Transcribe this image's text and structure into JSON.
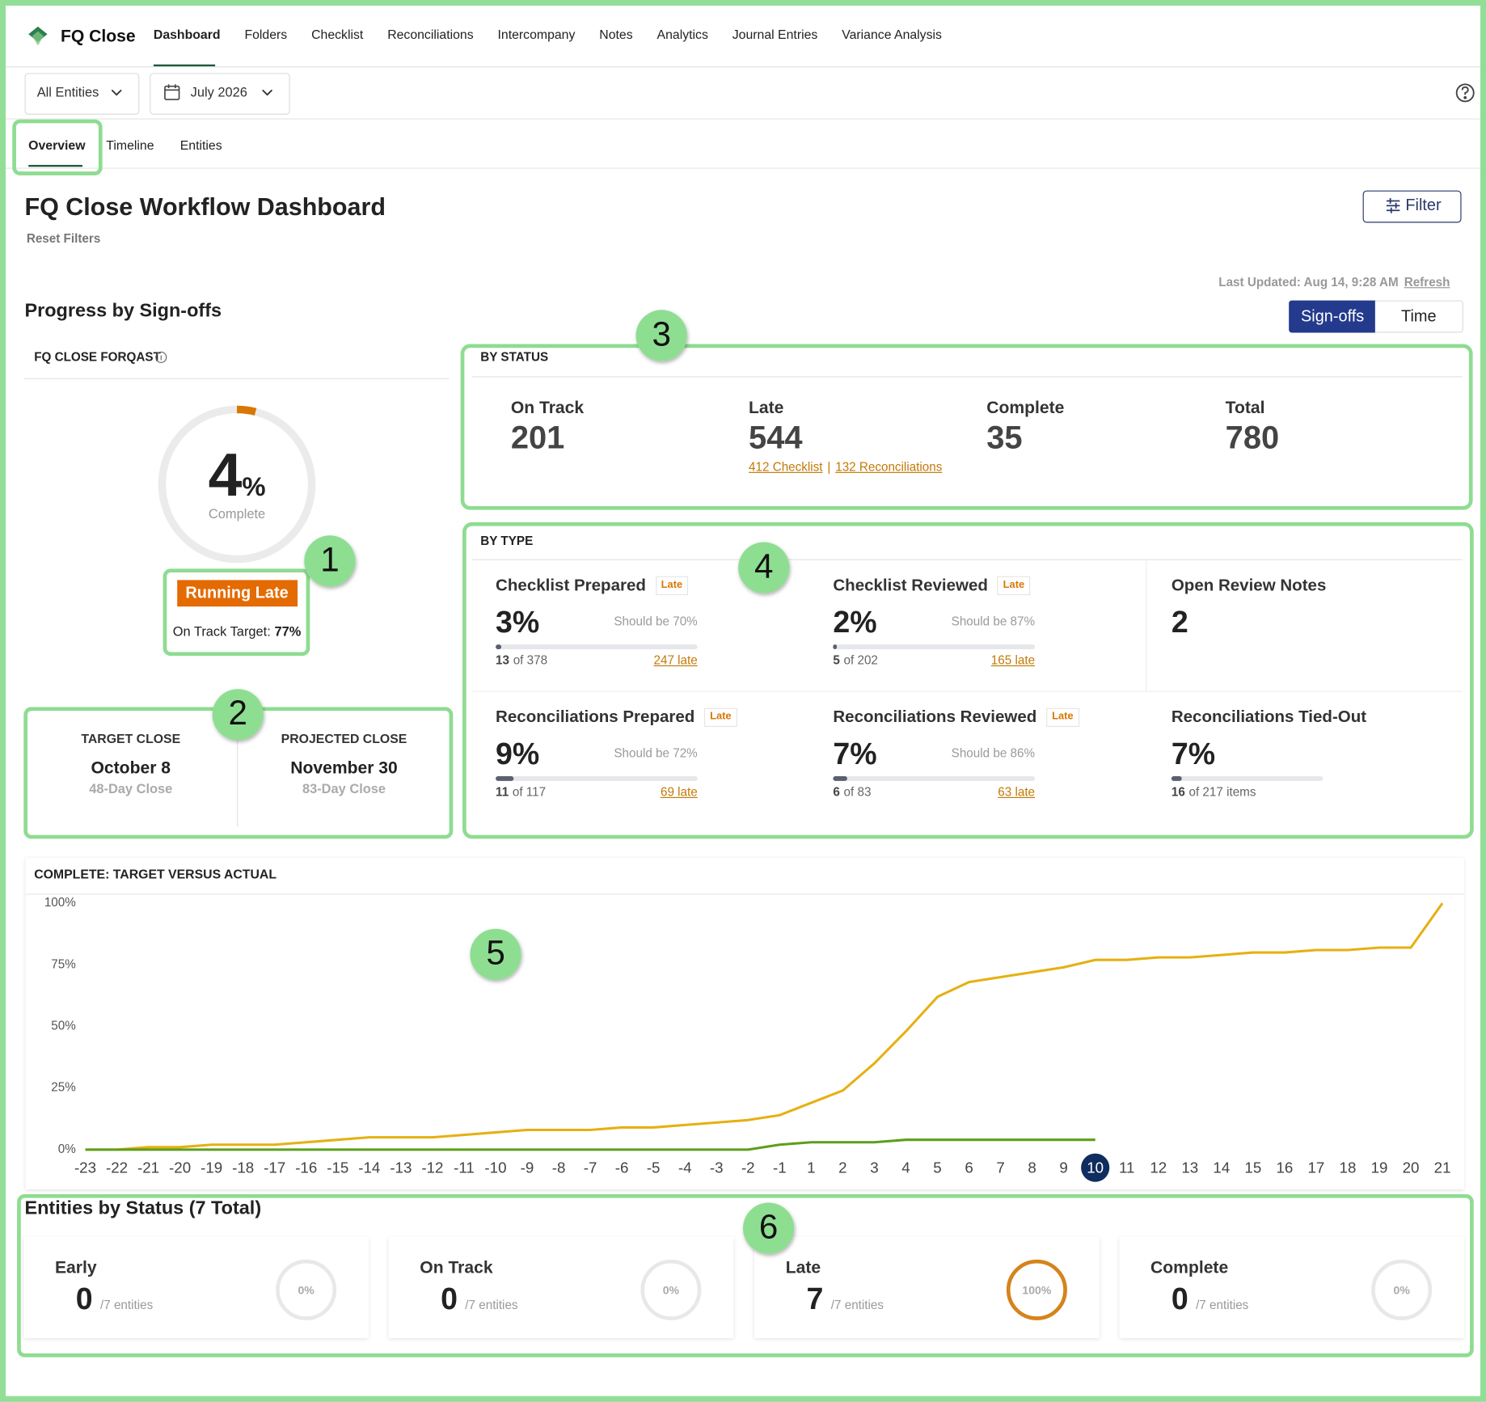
{
  "nav": {
    "brand": "FQ Close",
    "items": [
      "Dashboard",
      "Folders",
      "Checklist",
      "Reconciliations",
      "Intercompany",
      "Notes",
      "Analytics",
      "Journal Entries",
      "Variance Analysis"
    ]
  },
  "filters": {
    "entities": "All Entities",
    "period": "July 2026"
  },
  "tabs": [
    "Overview",
    "Timeline",
    "Entities"
  ],
  "header": {
    "title": "FQ Close Workflow Dashboard",
    "reset": "Reset Filters",
    "filter_button": "Filter",
    "last_updated": "Last Updated: Aug 14, 9:28 AM",
    "refresh": "Refresh"
  },
  "progress": {
    "title": "Progress by Sign-offs",
    "toggle": [
      "Sign-offs",
      "Time"
    ]
  },
  "forqast": {
    "title": "FQ CLOSE FORQAST",
    "value": 4,
    "unit": "%",
    "caption": "Complete",
    "badge": "Running Late",
    "target_label": "On Track Target:",
    "target_value": "77%"
  },
  "close_dates": [
    {
      "label": "TARGET CLOSE",
      "date": "October 8",
      "note": "48-Day Close"
    },
    {
      "label": "PROJECTED CLOSE",
      "date": "November 30",
      "note": "83-Day Close"
    }
  ],
  "by_status": {
    "title": "BY STATUS",
    "items": [
      {
        "label": "On Track",
        "value": 201
      },
      {
        "label": "Late",
        "value": 544
      },
      {
        "label": "Complete",
        "value": 35
      },
      {
        "label": "Total",
        "value": 780
      }
    ],
    "late_links": [
      "412 Checklist",
      "132 Reconciliations"
    ],
    "separator": "|"
  },
  "by_type": {
    "title": "BY TYPE",
    "items": [
      {
        "title": "Checklist Prepared",
        "badge": "Late",
        "percent": 3,
        "percent_label": "3%",
        "should": "Should be 70%",
        "done": "13",
        "of": "of 378",
        "late": "247 late"
      },
      {
        "title": "Checklist Reviewed",
        "badge": "Late",
        "percent": 2,
        "percent_label": "2%",
        "should": "Should be 87%",
        "done": "5",
        "of": "of 202",
        "late": "165 late"
      },
      {
        "title": "Open Review Notes",
        "value": "2"
      },
      {
        "title": "Reconciliations Prepared",
        "badge": "Late",
        "percent": 9,
        "percent_label": "9%",
        "should": "Should be 72%",
        "done": "11",
        "of": "of 117",
        "late": "69 late"
      },
      {
        "title": "Reconciliations Reviewed",
        "badge": "Late",
        "percent": 7,
        "percent_label": "7%",
        "should": "Should be 86%",
        "done": "6",
        "of": "of 83",
        "late": "63 late"
      },
      {
        "title": "Reconciliations Tied-Out",
        "percent": 7,
        "percent_label": "7%",
        "done": "16",
        "of": "of 217 items"
      }
    ]
  },
  "chart_data": {
    "type": "line",
    "title": "COMPLETE: TARGET VERSUS ACTUAL",
    "categories": [
      -23,
      -22,
      -21,
      -20,
      -19,
      -18,
      -17,
      -16,
      -15,
      -14,
      -13,
      -12,
      -11,
      -10,
      -9,
      -8,
      -7,
      -6,
      -5,
      -4,
      -3,
      -2,
      -1,
      1,
      2,
      3,
      4,
      5,
      6,
      7,
      8,
      9,
      10,
      11,
      12,
      13,
      14,
      15,
      16,
      17,
      18,
      19,
      20,
      21
    ],
    "current": 10,
    "series": [
      {
        "color": "#e6b012",
        "values": [
          0,
          0,
          1,
          1,
          2,
          2,
          2,
          3,
          4,
          5,
          5,
          5,
          6,
          7,
          8,
          8,
          8,
          9,
          9,
          10,
          11,
          12,
          14,
          19,
          24,
          35,
          48,
          62,
          68,
          70,
          72,
          74,
          77,
          77,
          78,
          78,
          79,
          80,
          80,
          81,
          81,
          82,
          82,
          100
        ]
      },
      {
        "color": "#5c9e1c",
        "values": [
          0,
          0,
          0,
          0,
          0,
          0,
          0,
          0,
          0,
          0,
          0,
          0,
          0,
          0,
          0,
          0,
          0,
          0,
          0,
          0,
          0,
          0,
          2,
          3,
          3,
          3,
          4,
          4,
          4,
          4,
          4,
          4,
          4,
          null,
          null,
          null,
          null,
          null,
          null,
          null,
          null,
          null,
          null,
          null
        ]
      }
    ],
    "ylim": [
      0,
      100
    ],
    "yticks": [
      {
        "value": 0,
        "label": "0%"
      },
      {
        "value": 25,
        "label": "25%"
      },
      {
        "value": 50,
        "label": "50%"
      },
      {
        "value": 75,
        "label": "75%"
      },
      {
        "value": 100,
        "label": "100%"
      }
    ],
    "grid": false
  },
  "entities": {
    "title": "Entities by Status (7 Total)",
    "cards": [
      {
        "label": "Early",
        "count": 0,
        "of": "/7 entities",
        "percent": 0,
        "percent_label": "0%"
      },
      {
        "label": "On Track",
        "count": 0,
        "of": "/7 entities",
        "percent": 0,
        "percent_label": "0%"
      },
      {
        "label": "Late",
        "count": 7,
        "of": "/7 entities",
        "percent": 100,
        "percent_label": "100%"
      },
      {
        "label": "Complete",
        "count": 0,
        "of": "/7 entities",
        "percent": 0,
        "percent_label": "0%"
      }
    ]
  },
  "annotations": [
    "1",
    "2",
    "3",
    "4",
    "5",
    "6"
  ]
}
